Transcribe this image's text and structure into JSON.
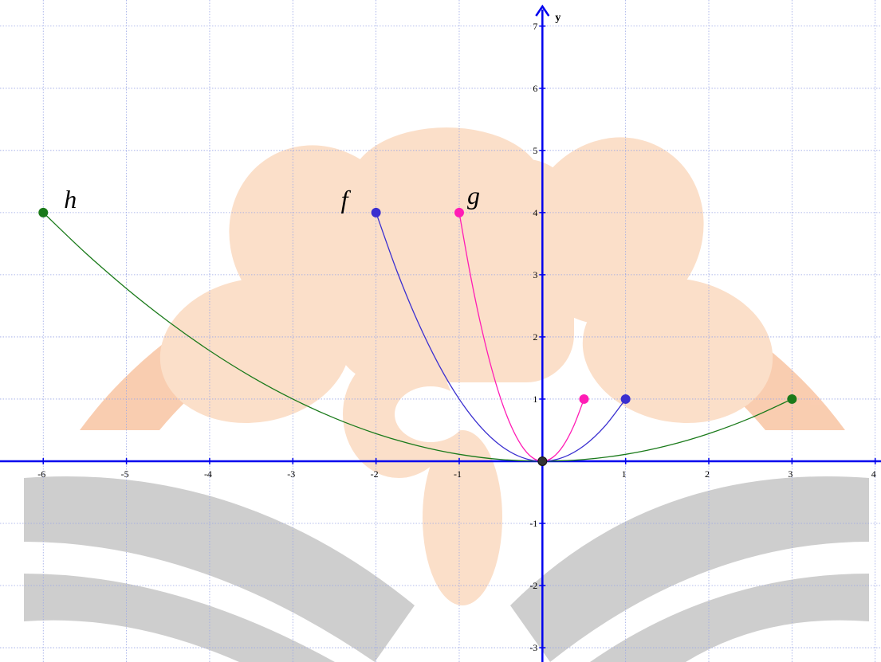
{
  "chart_data": {
    "type": "line",
    "y_label": "y",
    "xlim": [
      -6.52,
      4.07
    ],
    "ylim": [
      -3.23,
      7.42
    ],
    "xticks": [
      -6,
      -5,
      -4,
      -3,
      -2,
      -1,
      1,
      2,
      3,
      4
    ],
    "yticks": [
      -3,
      -2,
      -1,
      1,
      2,
      3,
      4,
      5,
      6,
      7
    ],
    "grid": true,
    "series": [
      {
        "name": "h",
        "color": "#1a7a1a",
        "x": [
          -6,
          -5.5,
          -5,
          -4.5,
          -4,
          -3.5,
          -3,
          -2.5,
          -2,
          -1.5,
          -1,
          -0.5,
          0,
          0.5,
          1,
          1.5,
          2,
          2.5,
          3
        ],
        "values": [
          4,
          3.361,
          2.778,
          2.25,
          1.778,
          1.361,
          1,
          0.694,
          0.444,
          0.25,
          0.111,
          0.028,
          0,
          0.028,
          0.111,
          0.25,
          0.444,
          0.694,
          1
        ]
      },
      {
        "name": "f",
        "color": "#3a2fd0",
        "x": [
          -2,
          -1.75,
          -1.5,
          -1.25,
          -1,
          -0.75,
          -0.5,
          -0.25,
          0,
          0.25,
          0.5,
          0.75,
          1
        ],
        "values": [
          4,
          3.063,
          2.25,
          1.563,
          1,
          0.563,
          0.25,
          0.063,
          0,
          0.063,
          0.25,
          0.563,
          1
        ]
      },
      {
        "name": "g",
        "color": "#ff1cb5",
        "x": [
          -1,
          -0.875,
          -0.75,
          -0.625,
          -0.5,
          -0.375,
          -0.25,
          -0.125,
          0,
          0.125,
          0.25,
          0.375,
          0.5
        ],
        "values": [
          4,
          3.063,
          2.25,
          1.563,
          1,
          0.563,
          0.25,
          0.063,
          0,
          0.063,
          0.25,
          0.563,
          1
        ]
      }
    ]
  }
}
